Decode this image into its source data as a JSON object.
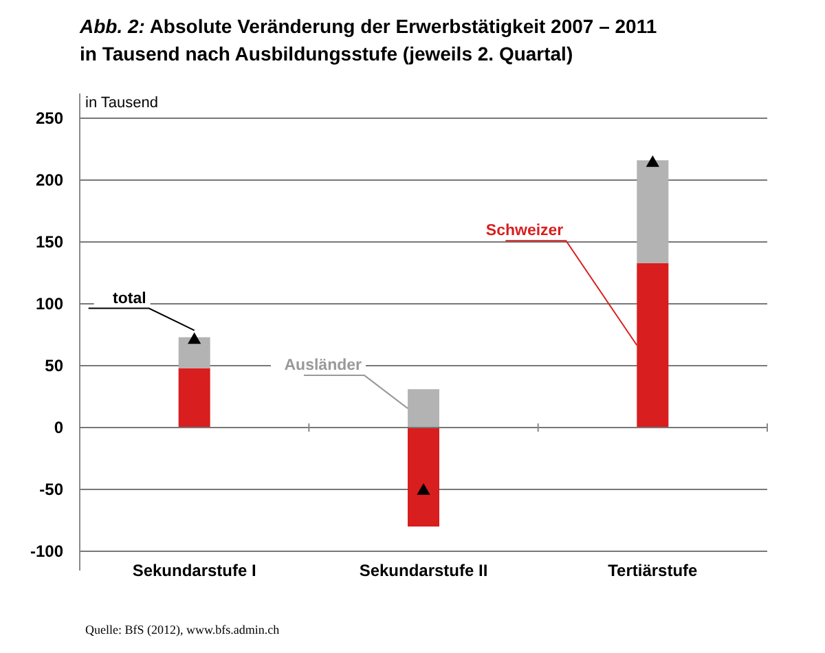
{
  "chart_data": {
    "type": "bar",
    "stacked": true,
    "title": "Abb. 2: Absolute Veränderung der Erwerbstätigkeit 2007 – 2011",
    "subtitle": "in Tausend nach Ausbildungsstufe (jeweils 2. Quartal)",
    "ylabel": "in Tausend",
    "categories": [
      "Sekundarstufe I",
      "Sekundarstufe II",
      "Tertiärstufe"
    ],
    "series": [
      {
        "name": "Schweizer",
        "color": "#d81e1e",
        "values": [
          48,
          -80,
          133
        ]
      },
      {
        "name": "Ausländer",
        "color": "#b3b3b3",
        "values": [
          25,
          31,
          83
        ]
      },
      {
        "name": "total",
        "type": "scatter",
        "marker": "triangle",
        "color": "#000000",
        "values": [
          73,
          -49,
          216
        ]
      }
    ],
    "ylim": [
      -100,
      250
    ],
    "yticks": [
      -100,
      -50,
      0,
      50,
      100,
      150,
      200,
      250
    ],
    "grid": "y",
    "legend": false,
    "annotations": [
      "Quelle: BfS (2012), www.bfs.admin.ch"
    ]
  }
}
